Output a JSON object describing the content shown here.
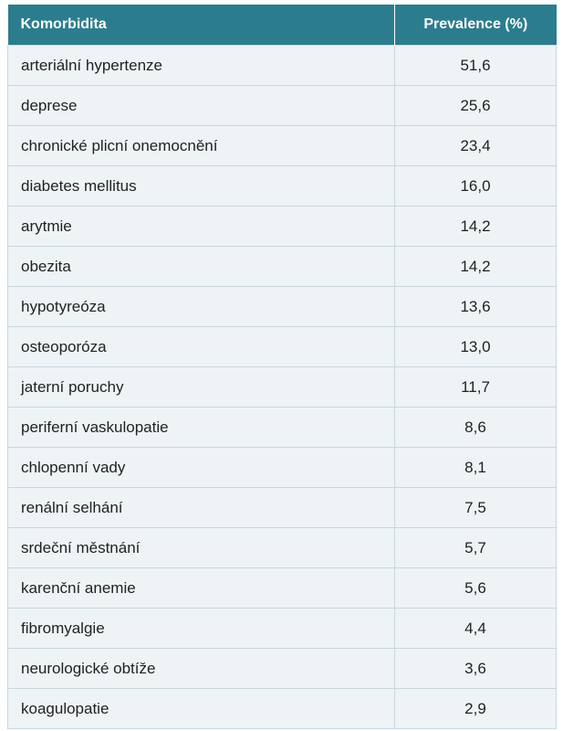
{
  "table": {
    "header": [
      "Komorbidita",
      "Prevalence (%)"
    ],
    "rows": [
      [
        "arteriální hypertenze",
        "51,6"
      ],
      [
        "deprese",
        "25,6"
      ],
      [
        "chronické plicní onemocnění",
        "23,4"
      ],
      [
        "diabetes mellitus",
        "16,0"
      ],
      [
        "arytmie",
        "14,2"
      ],
      [
        "obezita",
        "14,2"
      ],
      [
        "hypotyreóza",
        "13,6"
      ],
      [
        "osteoporóza",
        "13,0"
      ],
      [
        "jaterní poruchy",
        "11,7"
      ],
      [
        "periferní vaskulopatie",
        "8,6"
      ],
      [
        "chlopenní vady",
        "8,1"
      ],
      [
        "renální selhání",
        "7,5"
      ],
      [
        "srdeční městnání",
        "5,7"
      ],
      [
        "karenční anemie",
        "5,6"
      ],
      [
        "fibromyalgie",
        "4,4"
      ],
      [
        "neurologické obtíže",
        "3,6"
      ],
      [
        "koagulopatie",
        "2,9"
      ]
    ]
  }
}
